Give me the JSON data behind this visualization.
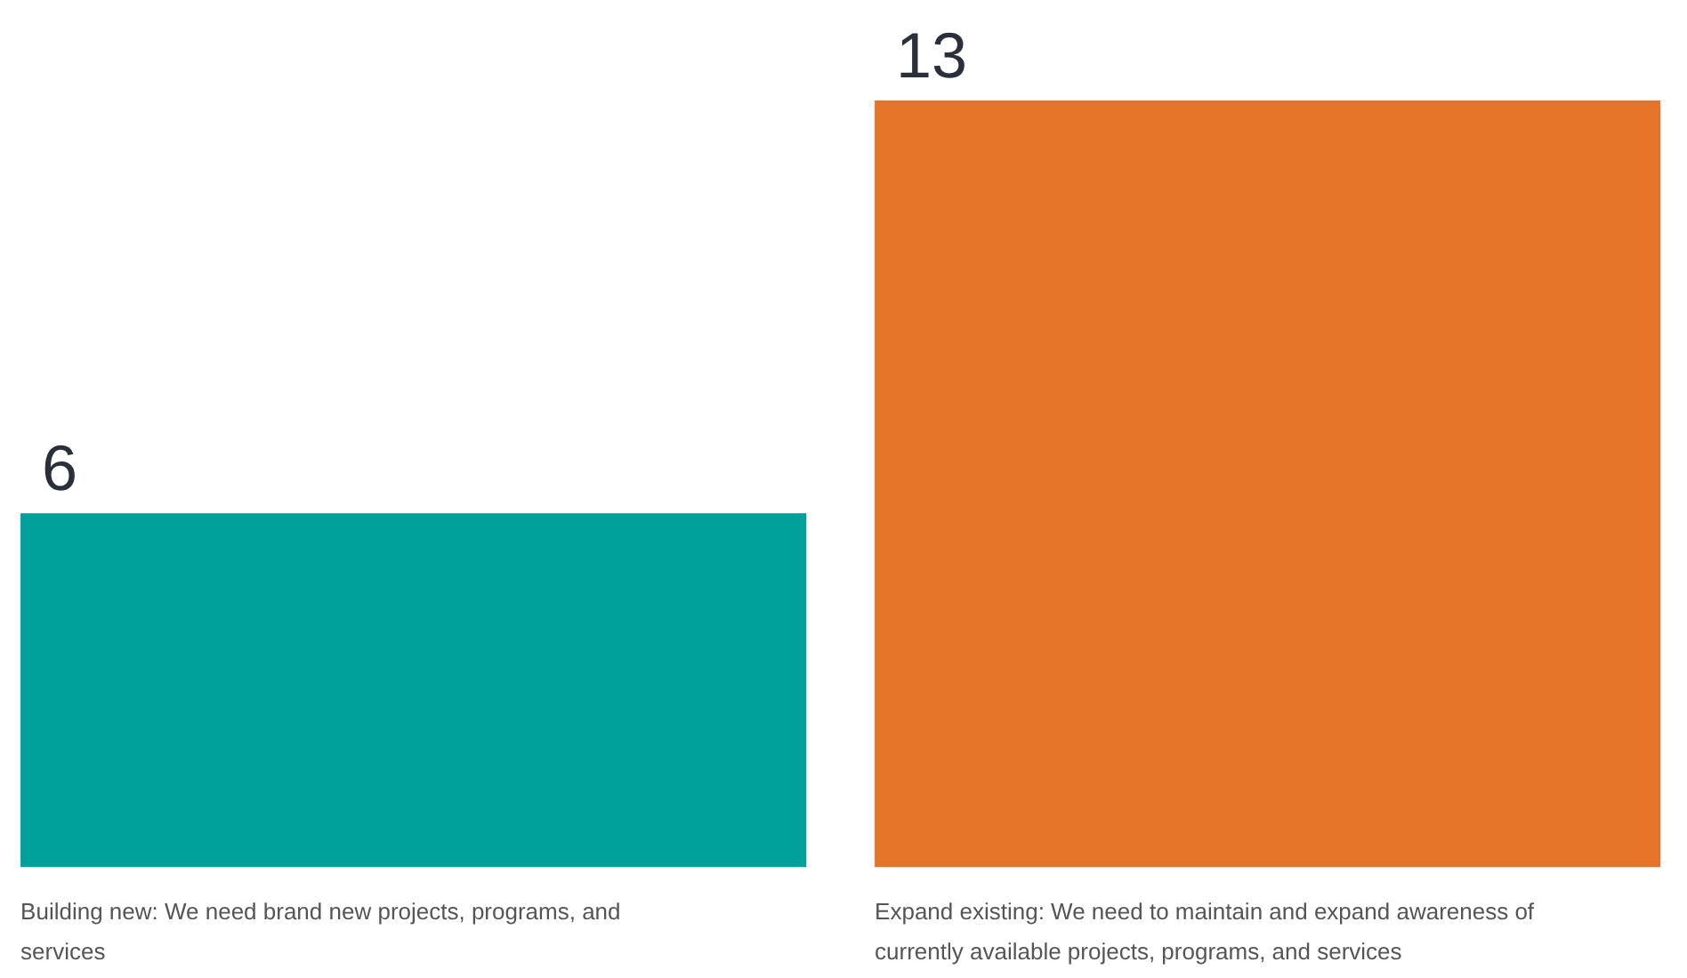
{
  "chart_data": {
    "type": "bar",
    "categories": [
      "Building new: We need brand new projects, programs, and services",
      "Expand existing: We need to maintain and expand awareness of currently available projects, programs, and services"
    ],
    "values": [
      6,
      13
    ],
    "colors": [
      "#00a19b",
      "#e67428"
    ],
    "data_labels": true
  }
}
